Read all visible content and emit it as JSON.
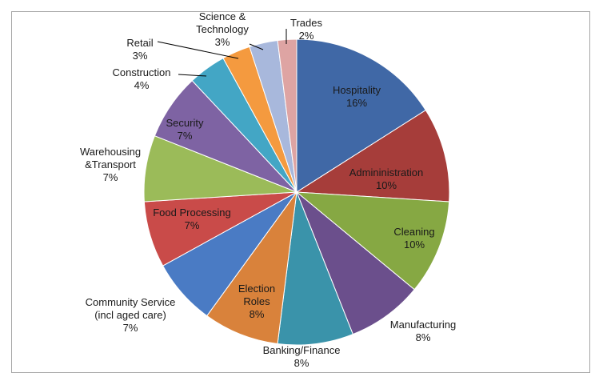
{
  "chart_data": {
    "type": "pie",
    "title": "",
    "slices": [
      {
        "lines": [
          "Hospitality",
          "16%"
        ],
        "value": 16,
        "color": "#4068a6"
      },
      {
        "lines": [
          "Admininistration",
          "10%"
        ],
        "value": 10,
        "color": "#a63d3a"
      },
      {
        "lines": [
          "Cleaning",
          "10%"
        ],
        "value": 10,
        "color": "#86a843"
      },
      {
        "lines": [
          "Manufacturing",
          "8%"
        ],
        "value": 8,
        "color": "#6b4f8c"
      },
      {
        "lines": [
          "Banking/Finance",
          "8%"
        ],
        "value": 8,
        "color": "#3a93aa"
      },
      {
        "lines": [
          "Election",
          "Roles",
          "8%"
        ],
        "value": 8,
        "color": "#d9823b"
      },
      {
        "lines": [
          "Community Service",
          "(incl aged care)",
          "7%"
        ],
        "value": 7,
        "color": "#4a7bc4"
      },
      {
        "lines": [
          "Food Processing",
          "7%"
        ],
        "value": 7,
        "color": "#c94b49"
      },
      {
        "lines": [
          "Warehousing",
          "&Transport",
          "7%"
        ],
        "value": 7,
        "color": "#9bbb59"
      },
      {
        "lines": [
          "Security",
          "7%"
        ],
        "value": 7,
        "color": "#7e63a3"
      },
      {
        "lines": [
          "Construction",
          "4%"
        ],
        "value": 4,
        "color": "#43a6c5"
      },
      {
        "lines": [
          "Retail",
          "3%"
        ],
        "value": 3,
        "color": "#f49a3f"
      },
      {
        "lines": [
          "Science &",
          "Technology",
          "3%"
        ],
        "value": 3,
        "color": "#a8b8dc"
      },
      {
        "lines": [
          "Trades",
          "2%"
        ],
        "value": 2,
        "color": "#dea4a3"
      }
    ]
  }
}
